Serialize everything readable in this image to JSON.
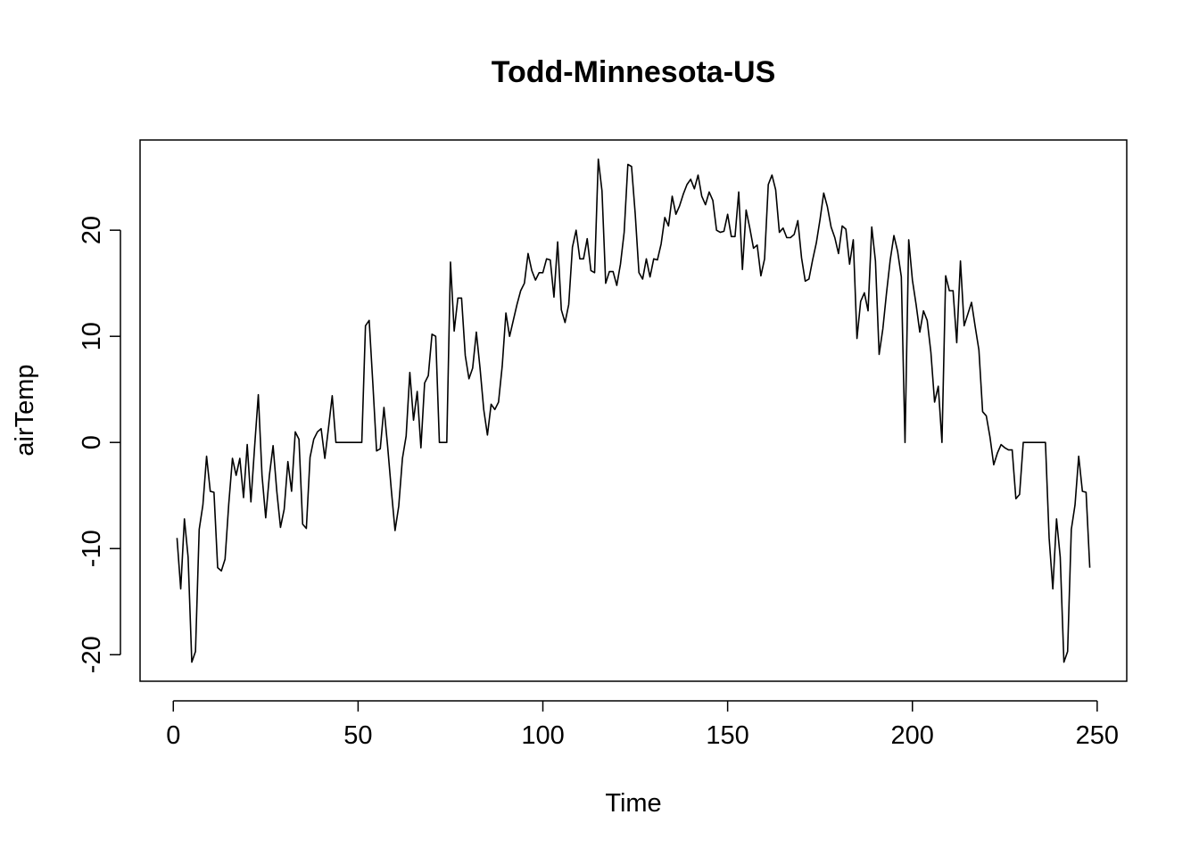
{
  "chart_data": {
    "type": "line",
    "title": "Todd-Minnesota-US",
    "xlabel": "Time",
    "ylabel": "airTemp",
    "xlim": [
      -9,
      258
    ],
    "ylim": [
      -22.5,
      28.5
    ],
    "xticks": [
      0,
      50,
      100,
      150,
      200,
      250
    ],
    "yticks": [
      -20,
      -10,
      0,
      10,
      20
    ],
    "xtick_labels": [
      "0",
      "50",
      "100",
      "150",
      "200",
      "250"
    ],
    "ytick_labels": [
      "-20",
      "-10",
      "0",
      "10",
      "20"
    ],
    "grid": false,
    "series": [
      {
        "color": "#000000",
        "x_start": 1,
        "values": [
          -9,
          -13.8,
          -7.2,
          -10.8,
          -20.7,
          -19.7,
          -8.2,
          -5.9,
          -1.3,
          -4.6,
          -4.7,
          -11.8,
          -12.1,
          -11,
          -5.8,
          -1.5,
          -3.1,
          -1.5,
          -5.2,
          -0.2,
          -5.6,
          -0.4,
          4.5,
          -3.1,
          -7.1,
          -3.1,
          -0.3,
          -4.6,
          -8,
          -6.3,
          -1.8,
          -4.6,
          1,
          0.3,
          -7.7,
          -8.1,
          -1.4,
          0.3,
          1,
          1.3,
          -1.5,
          1.4,
          4.4,
          0,
          0,
          0,
          0,
          0,
          0,
          0,
          0,
          11,
          11.5,
          5.5,
          -0.8,
          -0.6,
          3.3,
          -0.4,
          -4.5,
          -8.3,
          -6,
          -1.5,
          0.6,
          6.6,
          2.1,
          4.8,
          -0.5,
          5.6,
          6.3,
          10.2,
          10,
          0,
          0,
          0,
          17,
          10.5,
          13.6,
          13.6,
          8.2,
          6,
          7,
          10.4,
          7,
          3.1,
          0.7,
          3.6,
          3.1,
          3.8,
          7.2,
          12.2,
          10,
          11.5,
          13,
          14.3,
          15,
          17.8,
          16.2,
          15.3,
          16,
          16,
          17.3,
          17.2,
          13.7,
          18.9,
          12.5,
          11.3,
          13,
          18.4,
          20,
          17.3,
          17.3,
          19.2,
          16.2,
          16,
          26.7,
          23.7,
          15,
          16.1,
          16.1,
          14.8,
          16.8,
          19.8,
          26.2,
          26,
          21.5,
          16,
          15.4,
          17.3,
          15.6,
          17.3,
          17.2,
          18.7,
          21.2,
          20.4,
          23.2,
          21.5,
          22.3,
          23.4,
          24.3,
          24.8,
          23.9,
          25.2,
          23.2,
          22.4,
          23.6,
          22.8,
          20,
          19.8,
          19.9,
          21.5,
          19.4,
          19.4,
          23.6,
          16.3,
          21.9,
          20.2,
          18.3,
          18.6,
          15.7,
          17.3,
          24.3,
          25.2,
          23.8,
          19.8,
          20.2,
          19.3,
          19.3,
          19.6,
          20.9,
          17.4,
          15.2,
          15.4,
          17.2,
          18.8,
          21,
          23.5,
          22.2,
          20.3,
          19.3,
          17.8,
          20.4,
          20.1,
          16.8,
          19.1,
          9.8,
          13.3,
          14.1,
          12.4,
          20.3,
          17.1,
          8.3,
          10.7,
          14.1,
          17.2,
          19.5,
          18,
          15.6,
          0,
          19.1,
          15.3,
          13,
          10.4,
          12.4,
          11.5,
          8.5,
          3.8,
          5.3,
          0,
          15.7,
          14.3,
          14.3,
          9.4,
          17.1,
          11,
          12.1,
          13.2,
          10.9,
          8.7,
          2.9,
          2.5,
          0.5,
          -2.1,
          -1,
          -0.2,
          -0.5,
          -0.7,
          -0.7,
          -5.3,
          -4.9,
          0,
          0,
          0,
          0,
          0,
          0,
          0,
          -9,
          -13.8,
          -7.2,
          -10.8,
          -20.7,
          -19.7,
          -8.2,
          -5.9,
          -1.3,
          -4.6,
          -4.7,
          -11.8
        ]
      }
    ]
  }
}
